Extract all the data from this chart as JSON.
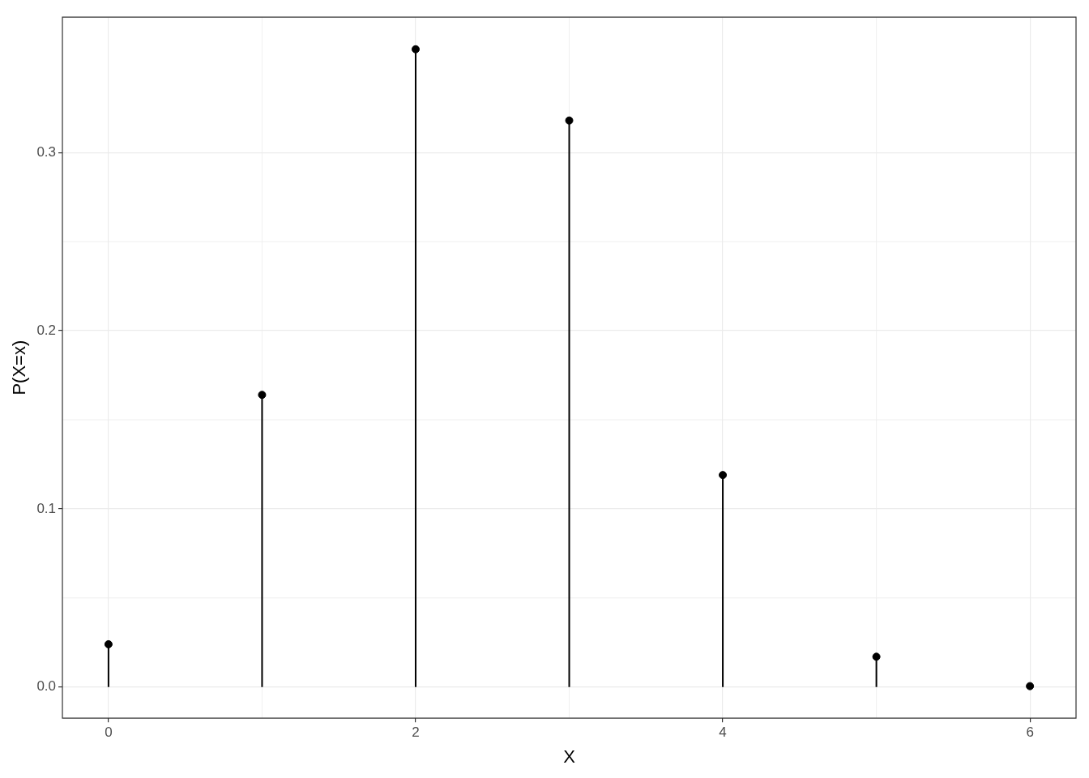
{
  "chart_data": {
    "type": "lollipop",
    "xlabel": "X",
    "ylabel": "P(X=x)",
    "x": [
      0,
      1,
      2,
      3,
      4,
      5,
      6
    ],
    "values": [
      0.024,
      0.164,
      0.358,
      0.318,
      0.119,
      0.017,
      0.0005
    ],
    "color": "#000000",
    "xlim": [
      -0.3,
      6.3
    ],
    "ylim": [
      -0.0175,
      0.376
    ],
    "xticks": [
      0,
      2,
      4,
      6
    ],
    "yticks": [
      {
        "value": 0,
        "label": "0.0"
      },
      {
        "value": 0.1,
        "label": "0.1"
      },
      {
        "value": 0.2,
        "label": "0.2"
      },
      {
        "value": 0.3,
        "label": "0.3"
      }
    ],
    "grid": true,
    "marker": "circle"
  }
}
